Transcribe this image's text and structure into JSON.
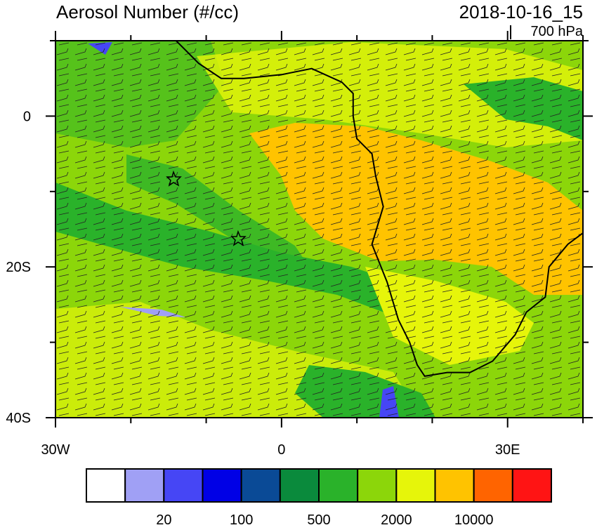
{
  "title": "Aerosol Number (#/cc)",
  "time": "2018-10-16_15",
  "level": "700 hPa",
  "map": {
    "lonlim": [
      -30,
      40
    ],
    "latlim": [
      -40,
      10
    ],
    "lonticks": [
      {
        "value": -30,
        "label": "30W"
      },
      {
        "value": 0,
        "label": "0"
      },
      {
        "value": 30,
        "label": "30E"
      }
    ],
    "latticks": [
      {
        "value": 0,
        "label": "0"
      },
      {
        "value": -20,
        "label": "20S"
      },
      {
        "value": -40,
        "label": "40S"
      }
    ],
    "lonminor": [
      -20,
      -10,
      10,
      20,
      40
    ],
    "latminor": [
      10,
      -10,
      -30
    ]
  },
  "colorbar": {
    "colors": [
      "#ffffff",
      "#a0a0f5",
      "#4646f5",
      "#0000e6",
      "#0a4a96",
      "#0a8a3c",
      "#2ab22a",
      "#8cd60a",
      "#e6f50a",
      "#ffc300",
      "#ff6400",
      "#ff1414"
    ],
    "labels": [
      "20",
      "100",
      "500",
      "2000",
      "10000"
    ]
  }
}
